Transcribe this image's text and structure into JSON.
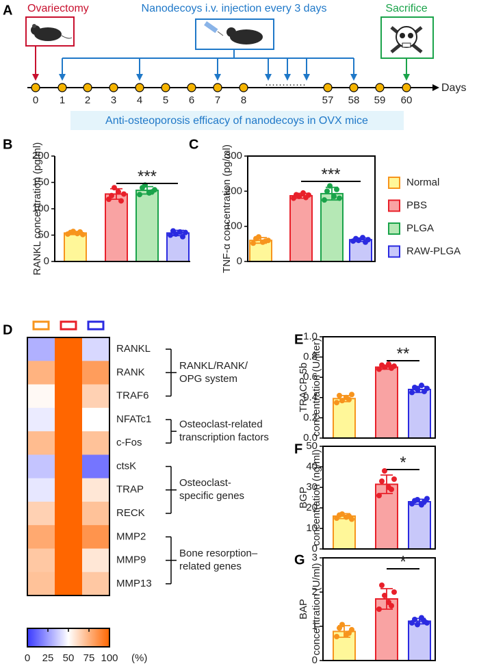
{
  "panel_labels": [
    "A",
    "B",
    "C",
    "D",
    "E",
    "F",
    "G"
  ],
  "timeline": {
    "start_label": "Ovariectomy",
    "injection_label": "Nanodecoys i.v. injection every 3 days",
    "end_label": "Sacrifice",
    "axis_label": "Days",
    "days": [
      "0",
      "1",
      "2",
      "3",
      "4",
      "5",
      "6",
      "7",
      "8",
      "57",
      "58",
      "59",
      "60"
    ],
    "gap": "············",
    "caption": "Anti-osteoporosis efficacy of nanodecoys in OVX mice"
  },
  "legend": [
    {
      "name": "Normal",
      "color": "#f7941d",
      "fill": "#fff799"
    },
    {
      "name": "PBS",
      "color": "#e8202a",
      "fill": "#f9a3a3"
    },
    {
      "name": "PLGA",
      "color": "#1aa34a",
      "fill": "#b5e8b5"
    },
    {
      "name": "RAW-PLGA",
      "color": "#2a2ae0",
      "fill": "#c8c8fa"
    }
  ],
  "chart_data": [
    {
      "type": "bar",
      "frame": "axes",
      "ylabel": [
        "RANKL concentration (pg/ml)"
      ],
      "ylim": [
        0,
        200
      ],
      "yticks": [
        0,
        50,
        100,
        150,
        200
      ],
      "significance": "***",
      "series": [
        {
          "color": "#f7941d",
          "fill": "#fff799",
          "values": [
            54
          ],
          "errors": [
            3
          ],
          "points": [
            52,
            55,
            57,
            53,
            56,
            51
          ]
        },
        {
          "color": "#e8202a",
          "fill": "#f9a3a3",
          "values": [
            128
          ],
          "errors": [
            10
          ],
          "points": [
            118,
            125,
            140,
            132,
            115,
            128
          ]
        },
        {
          "color": "#1aa34a",
          "fill": "#b5e8b5",
          "values": [
            135
          ],
          "errors": [
            7
          ],
          "points": [
            127,
            140,
            145,
            130,
            132,
            136
          ]
        },
        {
          "color": "#2a2ae0",
          "fill": "#c8c8fa",
          "values": [
            54
          ],
          "errors": [
            5
          ],
          "points": [
            50,
            58,
            52,
            56,
            47,
            55
          ]
        }
      ]
    },
    {
      "type": "bar",
      "frame": "box",
      "ylabel": [
        "TNF-α concentration (pg/ml)"
      ],
      "ylim": [
        0,
        300
      ],
      "yticks": [
        0,
        100,
        200,
        300
      ],
      "significance": "***",
      "series": [
        {
          "color": "#f7941d",
          "fill": "#fff799",
          "values": [
            60
          ],
          "errors": [
            8
          ],
          "points": [
            52,
            65,
            70,
            55,
            58,
            60
          ]
        },
        {
          "color": "#e8202a",
          "fill": "#f9a3a3",
          "values": [
            187
          ],
          "errors": [
            7
          ],
          "points": [
            180,
            190,
            185,
            195,
            182,
            189
          ]
        },
        {
          "color": "#1aa34a",
          "fill": "#b5e8b5",
          "values": [
            193
          ],
          "errors": [
            18
          ],
          "points": [
            175,
            200,
            215,
            185,
            205,
            180
          ]
        },
        {
          "color": "#2a2ae0",
          "fill": "#c8c8fa",
          "values": [
            62
          ],
          "errors": [
            5
          ],
          "points": [
            58,
            65,
            60,
            68,
            55,
            62
          ]
        }
      ]
    },
    {
      "type": "heatmap",
      "column_colors": [
        "#f7941d",
        "#e8202a",
        "#2a2ae0"
      ],
      "rows": [
        "RANKL",
        "RANK",
        "TRAF6",
        "NFATc1",
        "c-Fos",
        "ctsK",
        "TRAP",
        "RECK",
        "MMP2",
        "MMP9",
        "MMP13"
      ],
      "values": [
        [
          30,
          100,
          40
        ],
        [
          75,
          100,
          82
        ],
        [
          52,
          100,
          65
        ],
        [
          45,
          100,
          50
        ],
        [
          72,
          100,
          70
        ],
        [
          35,
          100,
          15
        ],
        [
          44,
          100,
          58
        ],
        [
          65,
          100,
          70
        ],
        [
          78,
          100,
          85
        ],
        [
          68,
          100,
          58
        ],
        [
          70,
          100,
          68
        ]
      ],
      "groups": [
        [
          "RANKL/RANK/",
          "OPG system"
        ],
        [
          "Osteoclast-related",
          "transcription factors"
        ],
        [
          "Osteoclast-",
          "specific genes"
        ],
        [
          "Bone resorption–",
          "related genes"
        ]
      ],
      "clim": [
        0,
        100
      ],
      "cticks": [
        0,
        25,
        50,
        75,
        100
      ],
      "cunit": "(%)",
      "colors": [
        "#3a3aff",
        "#ffffff",
        "#ff6600"
      ]
    },
    {
      "type": "bar",
      "frame": "box",
      "ylabel": [
        "TRACP-5b",
        "concentration (U/liter)"
      ],
      "ylim": [
        0,
        1
      ],
      "yticks": [
        {
          "value": 0,
          "label": "0.0"
        },
        0.2,
        0.4,
        0.6,
        0.8,
        {
          "value": 1,
          "label": "1.0"
        }
      ],
      "significance": "**",
      "series": [
        {
          "color": "#f7941d",
          "fill": "#fff799",
          "values": [
            0.39
          ],
          "errors": [
            0.03
          ],
          "points": [
            0.35,
            0.42,
            0.37,
            0.4,
            0.38,
            0.43
          ]
        },
        {
          "color": "#e8202a",
          "fill": "#f9a3a3",
          "values": [
            0.7
          ],
          "errors": [
            0.02
          ],
          "points": [
            0.68,
            0.72,
            0.7,
            0.73,
            0.69,
            0.71
          ]
        },
        {
          "color": "#2a2ae0",
          "fill": "#c8c8fa",
          "values": [
            0.48
          ],
          "errors": [
            0.03
          ],
          "points": [
            0.45,
            0.5,
            0.48,
            0.52,
            0.46,
            0.49
          ]
        }
      ]
    },
    {
      "type": "bar",
      "frame": "box",
      "ylabel": [
        "BGP",
        "concentration (ng/ml)"
      ],
      "ylim": [
        0,
        50
      ],
      "yticks": [
        0,
        10,
        20,
        30,
        40,
        50
      ],
      "significance": "*",
      "series": [
        {
          "color": "#f7941d",
          "fill": "#fff799",
          "values": [
            16
          ],
          "errors": [
            1.2
          ],
          "points": [
            15,
            16.5,
            17,
            15.5,
            16,
            14.5
          ]
        },
        {
          "color": "#e8202a",
          "fill": "#f9a3a3",
          "values": [
            31.5
          ],
          "errors": [
            4.5
          ],
          "points": [
            26,
            33,
            38,
            30,
            29,
            34
          ]
        },
        {
          "color": "#2a2ae0",
          "fill": "#c8c8fa",
          "values": [
            23
          ],
          "errors": [
            1.2
          ],
          "points": [
            22,
            23.5,
            24,
            21.5,
            23,
            24.5
          ]
        }
      ]
    },
    {
      "type": "bar",
      "frame": "box",
      "ylabel": [
        "BAP",
        "concentration (U/ml)"
      ],
      "ylim": [
        0,
        3
      ],
      "yticks": [
        0,
        1,
        2,
        3
      ],
      "significance": "*",
      "series": [
        {
          "color": "#f7941d",
          "fill": "#fff799",
          "values": [
            0.85
          ],
          "errors": [
            0.17
          ],
          "points": [
            0.7,
            0.95,
            1.05,
            0.75,
            0.8,
            0.9
          ]
        },
        {
          "color": "#e8202a",
          "fill": "#f9a3a3",
          "values": [
            1.8
          ],
          "errors": [
            0.3
          ],
          "points": [
            1.5,
            2.2,
            1.9,
            1.7,
            1.6,
            2.0
          ]
        },
        {
          "color": "#2a2ae0",
          "fill": "#c8c8fa",
          "values": [
            1.15
          ],
          "errors": [
            0.08
          ],
          "points": [
            1.1,
            1.2,
            1.05,
            1.25,
            1.15,
            1.1
          ]
        }
      ]
    }
  ]
}
